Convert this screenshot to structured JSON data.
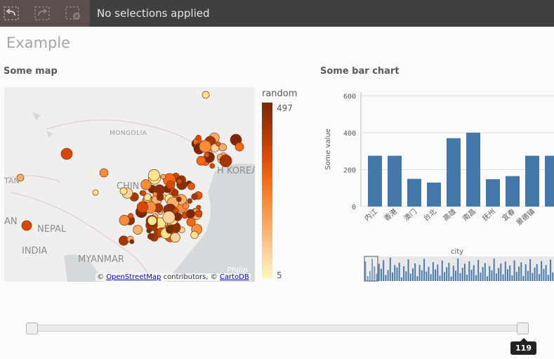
{
  "toolbar": {
    "selections_text": "No selections applied",
    "buttons": [
      "step-back-icon",
      "step-forward-icon",
      "clear-selections-icon"
    ]
  },
  "sheet": {
    "title": "Example"
  },
  "map_panel": {
    "title": "Some map",
    "labels": {
      "mongolia": "MONGOLIA",
      "china": "CHIN",
      "korea": "H KOREA",
      "nepal": "NEPAL",
      "india": "INDIA",
      "myanmar": "MYANMAR",
      "tan": "TAN",
      "an": "AN",
      "philip": "Philip"
    },
    "attribution": {
      "prefix": "© ",
      "osm": "OpenStreetMap",
      "middle": " contributors, © ",
      "carto": "CartoDB"
    },
    "legend": {
      "title": "random",
      "max": "497",
      "min": "5"
    }
  },
  "bar_panel": {
    "title": "Some bar chart",
    "colors": {
      "bar": "#4477aa",
      "grid": "#dddddd",
      "axis_text": "#595959"
    }
  },
  "chart_data": {
    "type": "bar",
    "categories": [
      "内江",
      "香港",
      "澳门",
      "台北",
      "高雄",
      "南昌",
      "抚州",
      "宜春",
      "景德镇",
      ""
    ],
    "values": [
      275,
      275,
      150,
      130,
      370,
      400,
      148,
      165,
      275,
      275
    ],
    "xlabel": "city",
    "ylabel": "Some value",
    "yticks": [
      0,
      200,
      400,
      600
    ],
    "ylim": [
      0,
      620
    ],
    "grid": true,
    "mini_chart_values": [
      80,
      20,
      40,
      90,
      60,
      30,
      70,
      50,
      85,
      25,
      45,
      95,
      35,
      65,
      55,
      75,
      15,
      60,
      40,
      88,
      30,
      52,
      72,
      20,
      66,
      44,
      90,
      38,
      58,
      28,
      77,
      47,
      67,
      22,
      83,
      36,
      56,
      74,
      18,
      62,
      42,
      92,
      32,
      54,
      70,
      26,
      80,
      46,
      64,
      24,
      86,
      34,
      57,
      73,
      19,
      61,
      43,
      91,
      31,
      53,
      71,
      27,
      79,
      48,
      63,
      23,
      84,
      37,
      59,
      76,
      21,
      68,
      41,
      89,
      33,
      55,
      69,
      29,
      81,
      49,
      65,
      25,
      87,
      35
    ]
  },
  "slider": {
    "value_label": "119",
    "low_fraction": 0.0,
    "high_fraction": 1.0
  }
}
